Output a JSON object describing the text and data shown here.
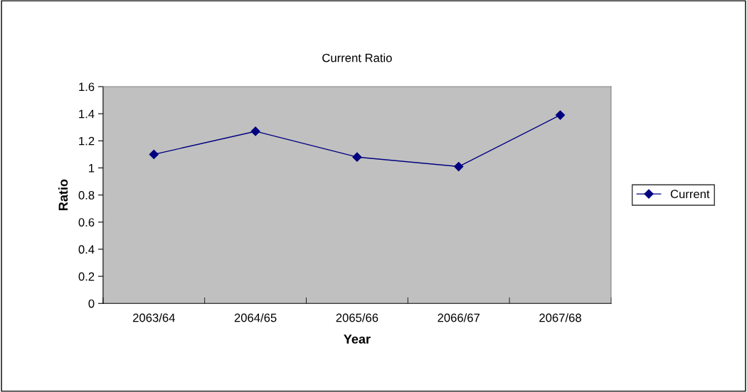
{
  "chart_data": {
    "type": "line",
    "title": "Current Ratio",
    "xlabel": "Year",
    "ylabel": "Ratio",
    "categories": [
      "2063/64",
      "2064/65",
      "2065/66",
      "2066/67",
      "2067/68"
    ],
    "series": [
      {
        "name": "Current",
        "color": "#000080",
        "values": [
          1.1,
          1.27,
          1.08,
          1.01,
          1.39
        ]
      }
    ],
    "ylim": [
      0,
      1.6
    ],
    "yticks": [
      0,
      {
        "value": 0.2,
        "label": "0.2"
      },
      {
        "value": 0.4,
        "label": "0.4"
      },
      {
        "value": 0.6,
        "label": "0.6"
      },
      {
        "value": 0.8,
        "label": "0.8"
      },
      1,
      {
        "value": 1.2,
        "label": "1.2"
      },
      {
        "value": 1.4,
        "label": "1.4"
      },
      {
        "value": 1.6,
        "label": "1.6"
      }
    ],
    "grid": false,
    "legend": "right",
    "marker": "diamond",
    "line_style": "solid"
  }
}
